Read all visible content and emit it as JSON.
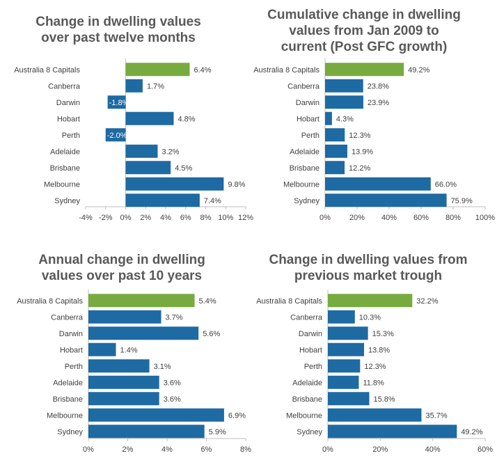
{
  "colors": {
    "highlight": "#77ab3f",
    "bar": "#1e6aa3",
    "axis": "#bfbfbf",
    "text": "#404040"
  },
  "chart_data": [
    {
      "type": "bar",
      "orientation": "horizontal",
      "title_lines": [
        "Change in dwelling values",
        "over past twelve months"
      ],
      "categories": [
        "Australia  8 Capitals",
        "Canberra",
        "Darwin",
        "Hobart",
        "Perth",
        "Adelaide",
        "Brisbane",
        "Melbourne",
        "Sydney"
      ],
      "values": [
        6.4,
        1.7,
        -1.8,
        4.8,
        -2.0,
        3.2,
        4.5,
        9.8,
        7.4
      ],
      "value_labels": [
        "6.4%",
        "1.7%",
        "-1.8%",
        "4.8%",
        "-2.0%",
        "3.2%",
        "4.5%",
        "9.8%",
        "7.4%"
      ],
      "highlight_index": 0,
      "xlim": [
        -4,
        12
      ],
      "xticks": [
        -4,
        -2,
        0,
        2,
        4,
        6,
        8,
        10,
        12
      ],
      "xtick_labels": [
        "-4%",
        "-2%",
        "0%",
        "2%",
        "4%",
        "6%",
        "8%",
        "10%",
        "12%"
      ]
    },
    {
      "type": "bar",
      "orientation": "horizontal",
      "title_lines": [
        "Cumulative change in dwelling",
        "values from Jan 2009 to",
        "current (Post GFC growth)"
      ],
      "categories": [
        "Australia  8 Capitals",
        "Canberra",
        "Darwin",
        "Hobart",
        "Perth",
        "Adelaide",
        "Brisbane",
        "Melbourne",
        "Sydney"
      ],
      "values": [
        49.2,
        23.8,
        23.9,
        4.3,
        12.3,
        13.9,
        12.2,
        66.0,
        75.9
      ],
      "value_labels": [
        "49.2%",
        "23.8%",
        "23.9%",
        "4.3%",
        "12.3%",
        "13.9%",
        "12.2%",
        "66.0%",
        "75.9%"
      ],
      "highlight_index": 0,
      "xlim": [
        0,
        100
      ],
      "xticks": [
        0,
        20,
        40,
        60,
        80,
        100
      ],
      "xtick_labels": [
        "0%",
        "20%",
        "40%",
        "60%",
        "80%",
        "100%"
      ]
    },
    {
      "type": "bar",
      "orientation": "horizontal",
      "title_lines": [
        "Annual change in dwelling",
        "values over past 10 years"
      ],
      "categories": [
        "Australia  8 Capitals",
        "Canberra",
        "Darwin",
        "Hobart",
        "Perth",
        "Adelaide",
        "Brisbane",
        "Melbourne",
        "Sydney"
      ],
      "values": [
        5.4,
        3.7,
        5.6,
        1.4,
        3.1,
        3.6,
        3.6,
        6.9,
        5.9
      ],
      "value_labels": [
        "5.4%",
        "3.7%",
        "5.6%",
        "1.4%",
        "3.1%",
        "3.6%",
        "3.6%",
        "6.9%",
        "5.9%"
      ],
      "highlight_index": 0,
      "xlim": [
        0,
        8
      ],
      "xticks": [
        0,
        2,
        4,
        6,
        8
      ],
      "xtick_labels": [
        "0%",
        "2%",
        "4%",
        "6%",
        "8%"
      ]
    },
    {
      "type": "bar",
      "orientation": "horizontal",
      "title_lines": [
        "Change in dwelling values from",
        "previous market trough"
      ],
      "categories": [
        "Australia  8 Capitals",
        "Canberra",
        "Darwin",
        "Hobart",
        "Perth",
        "Adelaide",
        "Brisbane",
        "Melbourne",
        "Sydney"
      ],
      "values": [
        32.2,
        10.3,
        15.3,
        13.8,
        12.3,
        11.8,
        15.8,
        35.7,
        49.2
      ],
      "value_labels": [
        "32.2%",
        "10.3%",
        "15.3%",
        "13.8%",
        "12.3%",
        "11.8%",
        "15.8%",
        "35.7%",
        "49.2%"
      ],
      "highlight_index": 0,
      "xlim": [
        0,
        60
      ],
      "xticks": [
        0,
        20,
        40,
        60
      ],
      "xtick_labels": [
        "0%",
        "20%",
        "40%",
        "60%"
      ]
    }
  ]
}
